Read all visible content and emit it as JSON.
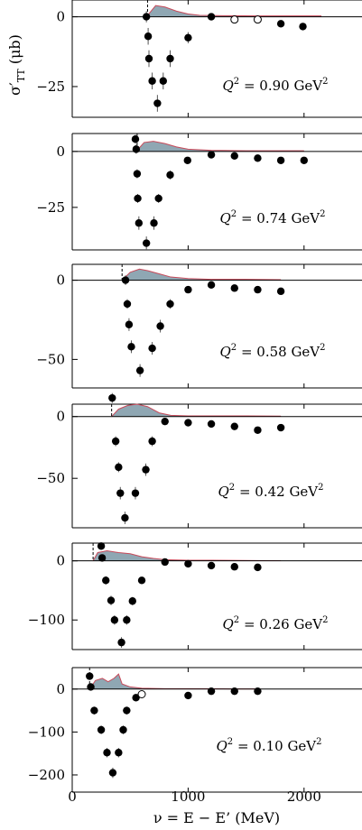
{
  "figure": {
    "xlabel": "ν = E − E’ (MeV)",
    "ylabel_main": "σ′",
    "ylabel_sub": "TT",
    "ylabel_unit": " (μb)"
  },
  "chart_data": [
    {
      "type": "scatter",
      "label": "Q² = 0.90 GeV²",
      "label_prefix": "Q",
      "label_sup": "2",
      "label_value": " = 0.90 GeV",
      "xlim": [
        0,
        2500
      ],
      "ylim": [
        -36,
        6
      ],
      "yticks": [
        0,
        -25
      ],
      "threshold_x": 650,
      "points": [
        [
          640,
          0
        ],
        [
          655,
          -7
        ],
        [
          662,
          -15
        ],
        [
          690,
          -23
        ],
        [
          735,
          -31
        ],
        [
          785,
          -23
        ],
        [
          845,
          -15
        ],
        [
          1000,
          -7.5
        ],
        [
          1200,
          0
        ],
        [
          1800,
          -2.5
        ],
        [
          1990,
          -3.5
        ]
      ],
      "errors": [
        2,
        3,
        3,
        3,
        3,
        3,
        3,
        2,
        1,
        1,
        1
      ],
      "open_points": [
        [
          1400,
          -1
        ],
        [
          1600,
          -1
        ]
      ],
      "model": [
        [
          650,
          0.5
        ],
        [
          720,
          4
        ],
        [
          800,
          3.5
        ],
        [
          900,
          2
        ],
        [
          1000,
          1
        ],
        [
          1100,
          0.5
        ],
        [
          1300,
          0.4
        ],
        [
          1600,
          0.3
        ],
        [
          1900,
          0.3
        ],
        [
          2150,
          0.3
        ]
      ]
    },
    {
      "type": "scatter",
      "label": "Q² = 0.74 GeV²",
      "label_prefix": "Q",
      "label_sup": "2",
      "label_value": " = 0.74 GeV",
      "xlim": [
        0,
        2500
      ],
      "ylim": [
        -44,
        8
      ],
      "yticks": [
        0,
        -25
      ],
      "threshold_x": 560,
      "points": [
        [
          545,
          5.5
        ],
        [
          552,
          1
        ],
        [
          560,
          -10
        ],
        [
          565,
          -21
        ],
        [
          575,
          -32
        ],
        [
          640,
          -41
        ],
        [
          705,
          -32
        ],
        [
          745,
          -21
        ],
        [
          845,
          -10.5
        ],
        [
          995,
          -4
        ],
        [
          1200,
          -1.5
        ],
        [
          1400,
          -2
        ],
        [
          1600,
          -3
        ],
        [
          1800,
          -4
        ],
        [
          2000,
          -4
        ]
      ],
      "errors": [
        2,
        2,
        2,
        2,
        3,
        3,
        3,
        2,
        2,
        1,
        1,
        1,
        1,
        1,
        1
      ],
      "open_points": [],
      "model": [
        [
          560,
          0.5
        ],
        [
          620,
          4
        ],
        [
          700,
          4.5
        ],
        [
          800,
          3.5
        ],
        [
          900,
          2
        ],
        [
          1000,
          1
        ],
        [
          1200,
          0.5
        ],
        [
          1500,
          0.3
        ],
        [
          1800,
          0.3
        ],
        [
          2000,
          0.3
        ]
      ]
    },
    {
      "type": "scatter",
      "label": "Q² = 0.58 GeV²",
      "label_prefix": "Q",
      "label_sup": "2",
      "label_value": " = 0.58 GeV",
      "xlim": [
        0,
        2500
      ],
      "ylim": [
        -68,
        10
      ],
      "yticks": [
        0,
        -50
      ],
      "threshold_x": 430,
      "points": [
        [
          460,
          0
        ],
        [
          475,
          -15
        ],
        [
          490,
          -28
        ],
        [
          510,
          -42
        ],
        [
          585,
          -57
        ],
        [
          690,
          -43
        ],
        [
          760,
          -29
        ],
        [
          845,
          -15
        ],
        [
          1000,
          -6
        ],
        [
          1200,
          -3
        ],
        [
          1400,
          -5
        ],
        [
          1600,
          -6
        ],
        [
          1800,
          -7
        ]
      ],
      "errors": [
        3,
        3,
        4,
        4,
        4,
        4,
        4,
        3,
        2,
        1,
        1,
        1,
        1
      ],
      "open_points": [],
      "model": [
        [
          430,
          0
        ],
        [
          500,
          5
        ],
        [
          580,
          7
        ],
        [
          650,
          6
        ],
        [
          750,
          4
        ],
        [
          850,
          2
        ],
        [
          1000,
          1
        ],
        [
          1200,
          0.5
        ],
        [
          1500,
          0.5
        ],
        [
          1800,
          0.3
        ]
      ]
    },
    {
      "type": "scatter",
      "label": "Q² = 0.42 GeV²",
      "label_prefix": "Q",
      "label_sup": "2",
      "label_value": " = 0.42 GeV",
      "xlim": [
        0,
        2500
      ],
      "ylim": [
        -90,
        10
      ],
      "yticks": [
        0,
        -50
      ],
      "threshold_x": 340,
      "points": [
        [
          345,
          15
        ],
        [
          375,
          -20
        ],
        [
          400,
          -41
        ],
        [
          415,
          -62
        ],
        [
          455,
          -82
        ],
        [
          545,
          -62
        ],
        [
          635,
          -43
        ],
        [
          690,
          -20
        ],
        [
          800,
          -4
        ],
        [
          1000,
          -5
        ],
        [
          1200,
          -6
        ],
        [
          1400,
          -8
        ],
        [
          1600,
          -11
        ],
        [
          1800,
          -9
        ]
      ],
      "errors": [
        4,
        4,
        4,
        5,
        5,
        5,
        5,
        4,
        2,
        2,
        2,
        2,
        2,
        2
      ],
      "open_points": [],
      "model": [
        [
          340,
          0
        ],
        [
          400,
          6
        ],
        [
          480,
          9
        ],
        [
          560,
          10
        ],
        [
          650,
          8
        ],
        [
          750,
          3
        ],
        [
          850,
          1
        ],
        [
          1000,
          0.5
        ],
        [
          1200,
          0.5
        ],
        [
          1500,
          0.5
        ],
        [
          1800,
          0.3
        ]
      ]
    },
    {
      "type": "scatter",
      "label": "Q² = 0.26 GeV²",
      "label_prefix": "Q",
      "label_sup": "2",
      "label_value": " = 0.26 GeV",
      "xlim": [
        0,
        2500
      ],
      "ylim": [
        -150,
        30
      ],
      "yticks": [
        0,
        -100
      ],
      "threshold_x": 180,
      "points": [
        [
          250,
          25
        ],
        [
          258,
          5
        ],
        [
          290,
          -33
        ],
        [
          335,
          -67
        ],
        [
          365,
          -100
        ],
        [
          425,
          -138
        ],
        [
          470,
          -100
        ],
        [
          520,
          -68
        ],
        [
          600,
          -33
        ],
        [
          800,
          -2
        ],
        [
          1000,
          -5
        ],
        [
          1200,
          -8
        ],
        [
          1400,
          -10
        ],
        [
          1600,
          -11
        ]
      ],
      "errors": [
        6,
        6,
        7,
        8,
        8,
        9,
        8,
        7,
        6,
        4,
        4,
        4,
        4,
        4
      ],
      "open_points": [],
      "model": [
        [
          180,
          0
        ],
        [
          220,
          14
        ],
        [
          300,
          17
        ],
        [
          400,
          14
        ],
        [
          500,
          12
        ],
        [
          600,
          7
        ],
        [
          700,
          4
        ],
        [
          800,
          2
        ],
        [
          1000,
          1
        ],
        [
          1200,
          1
        ],
        [
          1600,
          0.5
        ],
        [
          1800,
          0.3
        ]
      ]
    },
    {
      "type": "scatter",
      "label": "Q² = 0.10 GeV²",
      "label_prefix": "Q",
      "label_sup": "2",
      "label_value": " = 0.10 GeV",
      "xlim": [
        0,
        2500
      ],
      "ylim": [
        -240,
        50
      ],
      "yticks": [
        0,
        -100,
        -200
      ],
      "threshold_x": 150,
      "points": [
        [
          150,
          30
        ],
        [
          160,
          5
        ],
        [
          190,
          -50
        ],
        [
          250,
          -95
        ],
        [
          300,
          -148
        ],
        [
          350,
          -195
        ],
        [
          400,
          -148
        ],
        [
          440,
          -95
        ],
        [
          470,
          -50
        ],
        [
          550,
          -20
        ],
        [
          1000,
          -15
        ],
        [
          1200,
          -5
        ],
        [
          1400,
          -5
        ],
        [
          1600,
          -5
        ]
      ],
      "errors": [
        8,
        8,
        9,
        10,
        11,
        12,
        11,
        10,
        9,
        8,
        5,
        5,
        5,
        5
      ],
      "open_points": [
        [
          600,
          -12
        ]
      ],
      "model": [
        [
          150,
          0
        ],
        [
          200,
          20
        ],
        [
          260,
          25
        ],
        [
          310,
          17
        ],
        [
          360,
          25
        ],
        [
          400,
          35
        ],
        [
          430,
          12
        ],
        [
          500,
          5
        ],
        [
          600,
          2
        ],
        [
          800,
          1
        ],
        [
          1000,
          1
        ],
        [
          1300,
          0.5
        ],
        [
          1600,
          0.3
        ]
      ]
    }
  ],
  "xaxis": {
    "ticks": [
      0,
      1000,
      2000
    ],
    "tick_labels": [
      "0",
      "1000",
      "2000"
    ]
  }
}
